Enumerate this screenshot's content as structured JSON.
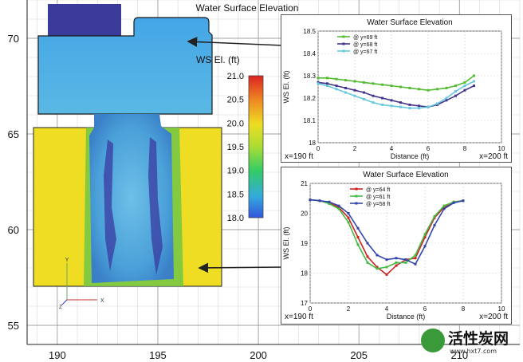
{
  "chart_data": [
    {
      "type": "heatmap",
      "title": "Water Surface Elevation",
      "xlim": [
        188.5,
        213
      ],
      "ylim": [
        54,
        72
      ],
      "x_ticks": [
        190,
        195,
        200,
        205,
        210
      ],
      "y_ticks": [
        55,
        60,
        65,
        70
      ],
      "colorbar": {
        "title": "WS El. (ft)",
        "range": [
          18.0,
          21.0
        ],
        "ticks": [
          "21.0",
          "20.5",
          "20.0",
          "19.5",
          "19.0",
          "18.5",
          "18.0"
        ]
      },
      "axis_triad": {
        "x": "X",
        "y": "Y",
        "z": "Z"
      }
    },
    {
      "type": "line",
      "title": "Water Surface Elevation",
      "xlabel": "Distance (ft)",
      "ylabel": "WS El. (ft)",
      "xlim": [
        0,
        10
      ],
      "ylim": [
        18,
        18.5
      ],
      "x_ticks": [
        0,
        2,
        4,
        6,
        8,
        10
      ],
      "y_ticks": [
        18,
        18.1,
        18.2,
        18.3,
        18.4,
        18.5
      ],
      "left_label": "x=190 ft",
      "right_label": "x=200 ft",
      "x": [
        0.0,
        0.5,
        1.0,
        1.5,
        2.0,
        2.5,
        3.0,
        3.5,
        4.0,
        4.5,
        5.0,
        5.5,
        6.0,
        6.5,
        7.0,
        7.5,
        8.0,
        8.5
      ],
      "series": [
        {
          "name": "@ y=69 ft",
          "color": "#55bb33",
          "values": [
            18.29,
            18.29,
            18.285,
            18.28,
            18.275,
            18.27,
            18.265,
            18.26,
            18.255,
            18.25,
            18.245,
            18.24,
            18.235,
            18.24,
            18.245,
            18.255,
            18.27,
            18.3
          ]
        },
        {
          "name": "@ y=68 ft",
          "color": "#443388",
          "values": [
            18.27,
            18.265,
            18.255,
            18.245,
            18.235,
            18.225,
            18.21,
            18.2,
            18.19,
            18.18,
            18.17,
            18.165,
            18.16,
            18.17,
            18.19,
            18.21,
            18.235,
            18.255
          ]
        },
        {
          "name": "@ y=67 ft",
          "color": "#66c8dd",
          "values": [
            18.265,
            18.255,
            18.24,
            18.225,
            18.21,
            18.195,
            18.18,
            18.17,
            18.165,
            18.16,
            18.155,
            18.155,
            18.16,
            18.175,
            18.2,
            18.23,
            18.255,
            18.275
          ]
        }
      ]
    },
    {
      "type": "line",
      "title": "Water Surface Elevation",
      "xlabel": "Distance (ft)",
      "ylabel": "WS El. (ft)",
      "xlim": [
        0,
        10
      ],
      "ylim": [
        17,
        21
      ],
      "x_ticks": [
        0,
        2,
        4,
        6,
        8,
        10
      ],
      "y_ticks": [
        17,
        18,
        19,
        20,
        21
      ],
      "left_label": "x=190 ft",
      "right_label": "x=200 ft",
      "x": [
        0.0,
        0.5,
        1.0,
        1.5,
        2.0,
        2.5,
        3.0,
        3.5,
        4.0,
        4.5,
        5.0,
        5.5,
        6.0,
        6.5,
        7.0,
        7.5,
        8.0
      ],
      "series": [
        {
          "name": "@ y=64 ft",
          "color": "#cc2222",
          "values": [
            20.45,
            20.42,
            20.35,
            20.2,
            19.85,
            19.2,
            18.55,
            18.2,
            17.95,
            18.25,
            18.45,
            18.5,
            19.2,
            19.85,
            20.2,
            20.38,
            20.42
          ]
        },
        {
          "name": "@ y=61 ft",
          "color": "#44bb44",
          "values": [
            20.45,
            20.42,
            20.32,
            20.15,
            19.7,
            18.95,
            18.35,
            18.15,
            18.2,
            18.35,
            18.35,
            18.6,
            19.3,
            19.9,
            20.25,
            20.38,
            20.42
          ]
        },
        {
          "name": "@ y=58 ft",
          "color": "#3344aa",
          "values": [
            20.45,
            20.42,
            20.38,
            20.25,
            20.0,
            19.5,
            19.0,
            18.6,
            18.45,
            18.5,
            18.45,
            18.3,
            18.9,
            19.6,
            20.15,
            20.35,
            20.42
          ]
        }
      ]
    }
  ],
  "watermark": {
    "brand": "活性炭网",
    "url": "www.hxt7.com"
  }
}
